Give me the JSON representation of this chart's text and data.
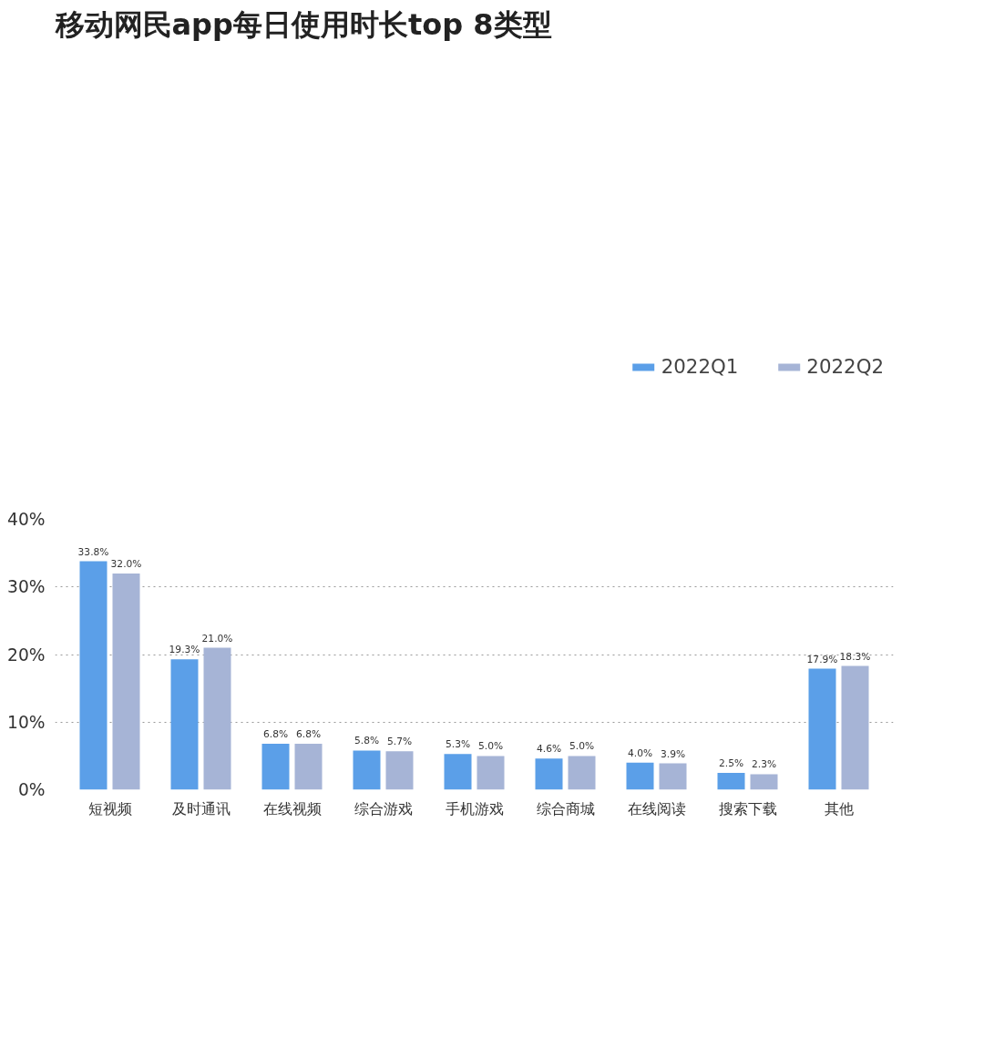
{
  "chart_data": {
    "type": "bar",
    "title": "移动网民app每日使用时长top 8类型",
    "categories": [
      "短视频",
      "及时通讯",
      "在线视频",
      "综合游戏",
      "手机游戏",
      "综合商城",
      "在线阅读",
      "搜索下载",
      "其他"
    ],
    "series": [
      {
        "name": "2022Q1",
        "color": "#5b9fe8",
        "values": [
          33.8,
          19.3,
          6.8,
          5.8,
          5.3,
          4.6,
          4.0,
          2.5,
          17.9
        ],
        "value_labels": [
          "33.8%",
          "19.3%",
          "6.8%",
          "5.8%",
          "5.3%",
          "4.6%",
          "4.0%",
          "2.5%",
          "17.9%"
        ]
      },
      {
        "name": "2022Q2",
        "color": "#a6b4d6",
        "values": [
          32.0,
          21.0,
          6.8,
          5.7,
          5.0,
          5.0,
          3.9,
          2.3,
          18.3
        ],
        "value_labels": [
          "32.0%",
          "21.0%",
          "6.8%",
          "5.7%",
          "5.0%",
          "5.0%",
          "3.9%",
          "2.3%",
          "18.3%"
        ]
      }
    ],
    "ylim": [
      0,
      40
    ],
    "yticks": [
      {
        "value": 0,
        "label": "0%"
      },
      {
        "value": 10,
        "label": "10%"
      },
      {
        "value": 20,
        "label": "20%"
      },
      {
        "value": 30,
        "label": "30%"
      },
      {
        "value": 40,
        "label": "40%"
      }
    ],
    "grid": "y",
    "legend": "top right"
  }
}
